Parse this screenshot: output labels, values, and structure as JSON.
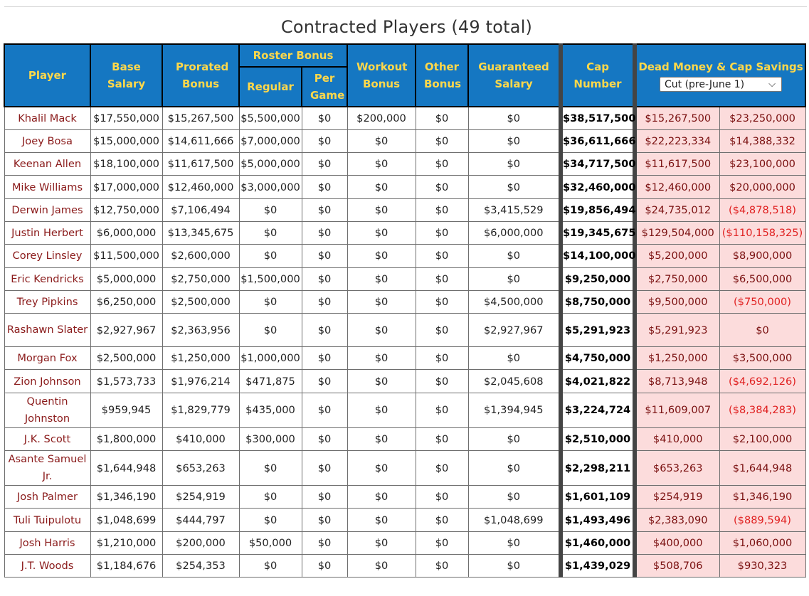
{
  "title": "Contracted Players (49 total)",
  "headers": {
    "player": "Player",
    "base_salary": "Base Salary",
    "prorated_bonus": "Prorated Bonus",
    "roster_bonus": "Roster Bonus",
    "roster_regular": "Regular",
    "roster_per_game": "Per Game",
    "workout_bonus": "Workout Bonus",
    "other_bonus": "Other Bonus",
    "guaranteed_salary": "Guaranteed Salary",
    "cap_number": "Cap Number",
    "dead_money": "Dead Money & Cap Savings",
    "cut_select": "Cut (pre-June 1)"
  },
  "colors": {
    "header_bg": "#1577c2",
    "header_text": "#ffd84a",
    "dead_bg": "#fcdcdc",
    "negative": "#e02020",
    "player_name": "#8a1a1a"
  },
  "rows": [
    {
      "player": "Khalil Mack",
      "base": "$17,550,000",
      "prorated": "$15,267,500",
      "regular": "$5,500,000",
      "per_game": "$0",
      "workout": "$200,000",
      "other": "$0",
      "guaranteed": "$0",
      "cap": "$38,517,500",
      "dead": "$15,267,500",
      "savings": "$23,250,000",
      "neg": false
    },
    {
      "player": "Joey Bosa",
      "base": "$15,000,000",
      "prorated": "$14,611,666",
      "regular": "$7,000,000",
      "per_game": "$0",
      "workout": "$0",
      "other": "$0",
      "guaranteed": "$0",
      "cap": "$36,611,666",
      "dead": "$22,223,334",
      "savings": "$14,388,332",
      "neg": false
    },
    {
      "player": "Keenan Allen",
      "base": "$18,100,000",
      "prorated": "$11,617,500",
      "regular": "$5,000,000",
      "per_game": "$0",
      "workout": "$0",
      "other": "$0",
      "guaranteed": "$0",
      "cap": "$34,717,500",
      "dead": "$11,617,500",
      "savings": "$23,100,000",
      "neg": false
    },
    {
      "player": "Mike Williams",
      "base": "$17,000,000",
      "prorated": "$12,460,000",
      "regular": "$3,000,000",
      "per_game": "$0",
      "workout": "$0",
      "other": "$0",
      "guaranteed": "$0",
      "cap": "$32,460,000",
      "dead": "$12,460,000",
      "savings": "$20,000,000",
      "neg": false
    },
    {
      "player": "Derwin James",
      "base": "$12,750,000",
      "prorated": "$7,106,494",
      "regular": "$0",
      "per_game": "$0",
      "workout": "$0",
      "other": "$0",
      "guaranteed": "$3,415,529",
      "cap": "$19,856,494",
      "dead": "$24,735,012",
      "savings": "($4,878,518)",
      "neg": true
    },
    {
      "player": "Justin Herbert",
      "base": "$6,000,000",
      "prorated": "$13,345,675",
      "regular": "$0",
      "per_game": "$0",
      "workout": "$0",
      "other": "$0",
      "guaranteed": "$6,000,000",
      "cap": "$19,345,675",
      "dead": "$129,504,000",
      "savings": "($110,158,325)",
      "neg": true
    },
    {
      "player": "Corey Linsley",
      "base": "$11,500,000",
      "prorated": "$2,600,000",
      "regular": "$0",
      "per_game": "$0",
      "workout": "$0",
      "other": "$0",
      "guaranteed": "$0",
      "cap": "$14,100,000",
      "dead": "$5,200,000",
      "savings": "$8,900,000",
      "neg": false
    },
    {
      "player": "Eric Kendricks",
      "base": "$5,000,000",
      "prorated": "$2,750,000",
      "regular": "$1,500,000",
      "per_game": "$0",
      "workout": "$0",
      "other": "$0",
      "guaranteed": "$0",
      "cap": "$9,250,000",
      "dead": "$2,750,000",
      "savings": "$6,500,000",
      "neg": false
    },
    {
      "player": "Trey Pipkins",
      "base": "$6,250,000",
      "prorated": "$2,500,000",
      "regular": "$0",
      "per_game": "$0",
      "workout": "$0",
      "other": "$0",
      "guaranteed": "$4,500,000",
      "cap": "$8,750,000",
      "dead": "$9,500,000",
      "savings": "($750,000)",
      "neg": true
    },
    {
      "player": "Rashawn Slater",
      "base": "$2,927,967",
      "prorated": "$2,363,956",
      "regular": "$0",
      "per_game": "$0",
      "workout": "$0",
      "other": "$0",
      "guaranteed": "$2,927,967",
      "cap": "$5,291,923",
      "dead": "$5,291,923",
      "savings": "$0",
      "neg": false,
      "two": true
    },
    {
      "player": "Morgan Fox",
      "base": "$2,500,000",
      "prorated": "$1,250,000",
      "regular": "$1,000,000",
      "per_game": "$0",
      "workout": "$0",
      "other": "$0",
      "guaranteed": "$0",
      "cap": "$4,750,000",
      "dead": "$1,250,000",
      "savings": "$3,500,000",
      "neg": false
    },
    {
      "player": "Zion Johnson",
      "base": "$1,573,733",
      "prorated": "$1,976,214",
      "regular": "$471,875",
      "per_game": "$0",
      "workout": "$0",
      "other": "$0",
      "guaranteed": "$2,045,608",
      "cap": "$4,021,822",
      "dead": "$8,713,948",
      "savings": "($4,692,126)",
      "neg": true
    },
    {
      "player": "Quentin Johnston",
      "base": "$959,945",
      "prorated": "$1,829,779",
      "regular": "$435,000",
      "per_game": "$0",
      "workout": "$0",
      "other": "$0",
      "guaranteed": "$1,394,945",
      "cap": "$3,224,724",
      "dead": "$11,609,007",
      "savings": "($8,384,283)",
      "neg": true,
      "two": true
    },
    {
      "player": "J.K. Scott",
      "base": "$1,800,000",
      "prorated": "$410,000",
      "regular": "$300,000",
      "per_game": "$0",
      "workout": "$0",
      "other": "$0",
      "guaranteed": "$0",
      "cap": "$2,510,000",
      "dead": "$410,000",
      "savings": "$2,100,000",
      "neg": false
    },
    {
      "player": "Asante Samuel Jr.",
      "base": "$1,644,948",
      "prorated": "$653,263",
      "regular": "$0",
      "per_game": "$0",
      "workout": "$0",
      "other": "$0",
      "guaranteed": "$0",
      "cap": "$2,298,211",
      "dead": "$653,263",
      "savings": "$1,644,948",
      "neg": false,
      "two": true
    },
    {
      "player": "Josh Palmer",
      "base": "$1,346,190",
      "prorated": "$254,919",
      "regular": "$0",
      "per_game": "$0",
      "workout": "$0",
      "other": "$0",
      "guaranteed": "$0",
      "cap": "$1,601,109",
      "dead": "$254,919",
      "savings": "$1,346,190",
      "neg": false
    },
    {
      "player": "Tuli Tuipulotu",
      "base": "$1,048,699",
      "prorated": "$444,797",
      "regular": "$0",
      "per_game": "$0",
      "workout": "$0",
      "other": "$0",
      "guaranteed": "$1,048,699",
      "cap": "$1,493,496",
      "dead": "$2,383,090",
      "savings": "($889,594)",
      "neg": true
    },
    {
      "player": "Josh Harris",
      "base": "$1,210,000",
      "prorated": "$200,000",
      "regular": "$50,000",
      "per_game": "$0",
      "workout": "$0",
      "other": "$0",
      "guaranteed": "$0",
      "cap": "$1,460,000",
      "dead": "$400,000",
      "savings": "$1,060,000",
      "neg": false
    },
    {
      "player": "J.T. Woods",
      "base": "$1,184,676",
      "prorated": "$254,353",
      "regular": "$0",
      "per_game": "$0",
      "workout": "$0",
      "other": "$0",
      "guaranteed": "$0",
      "cap": "$1,439,029",
      "dead": "$508,706",
      "savings": "$930,323",
      "neg": false
    }
  ]
}
